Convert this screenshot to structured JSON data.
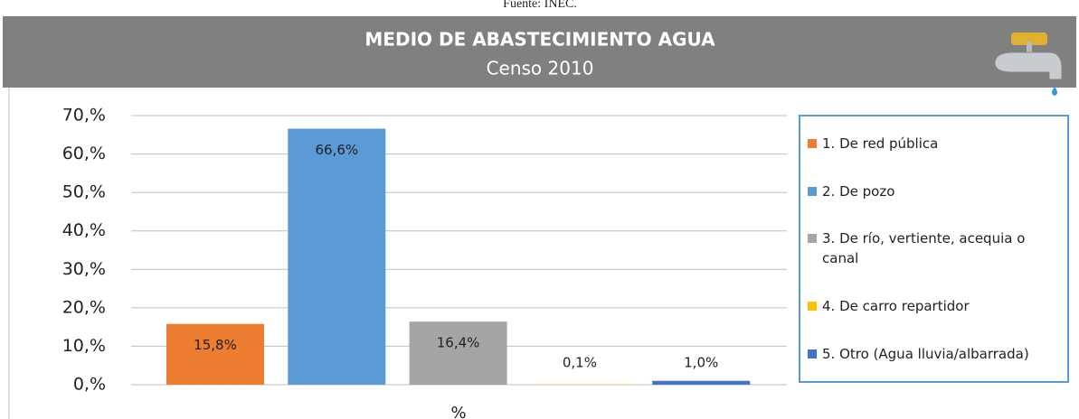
{
  "chart_data": {
    "type": "bar",
    "source": "Fuente: INEC.",
    "title": "MEDIO DE ABASTECIMIENTO AGUA",
    "subtitle": "Censo 2010",
    "x_label": "%",
    "series": [
      {
        "name": "1. De red pública",
        "color": "#ed7d31",
        "values": [
          15.8
        ],
        "value_labels": [
          "15,8%"
        ]
      },
      {
        "name": "2. De pozo",
        "color": "#5b9bd5",
        "values": [
          66.6
        ],
        "value_labels": [
          "66,6%"
        ]
      },
      {
        "name": "3. De río, vertiente, acequia o canal",
        "color": "#a5a5a5",
        "values": [
          16.4
        ],
        "value_labels": [
          "16,4%"
        ]
      },
      {
        "name": "4. De carro repartidor",
        "color": "#ffc000",
        "values": [
          0.1
        ],
        "value_labels": [
          "0,1%"
        ]
      },
      {
        "name": "5. Otro (Agua lluvia/albarrada)",
        "color": "#4472c4",
        "values": [
          1.0
        ],
        "value_labels": [
          "1,0%"
        ]
      }
    ],
    "ylim": [
      0,
      70
    ],
    "yticks": [
      {
        "value": 0,
        "label": "0,%"
      },
      {
        "value": 10,
        "label": "10,%"
      },
      {
        "value": 20,
        "label": "20,%"
      },
      {
        "value": 30,
        "label": "30,%"
      },
      {
        "value": 40,
        "label": "40,%"
      },
      {
        "value": 50,
        "label": "50,%"
      },
      {
        "value": 60,
        "label": "60,%"
      },
      {
        "value": 70,
        "label": "70,%"
      }
    ],
    "grid": true,
    "legend": "right"
  }
}
